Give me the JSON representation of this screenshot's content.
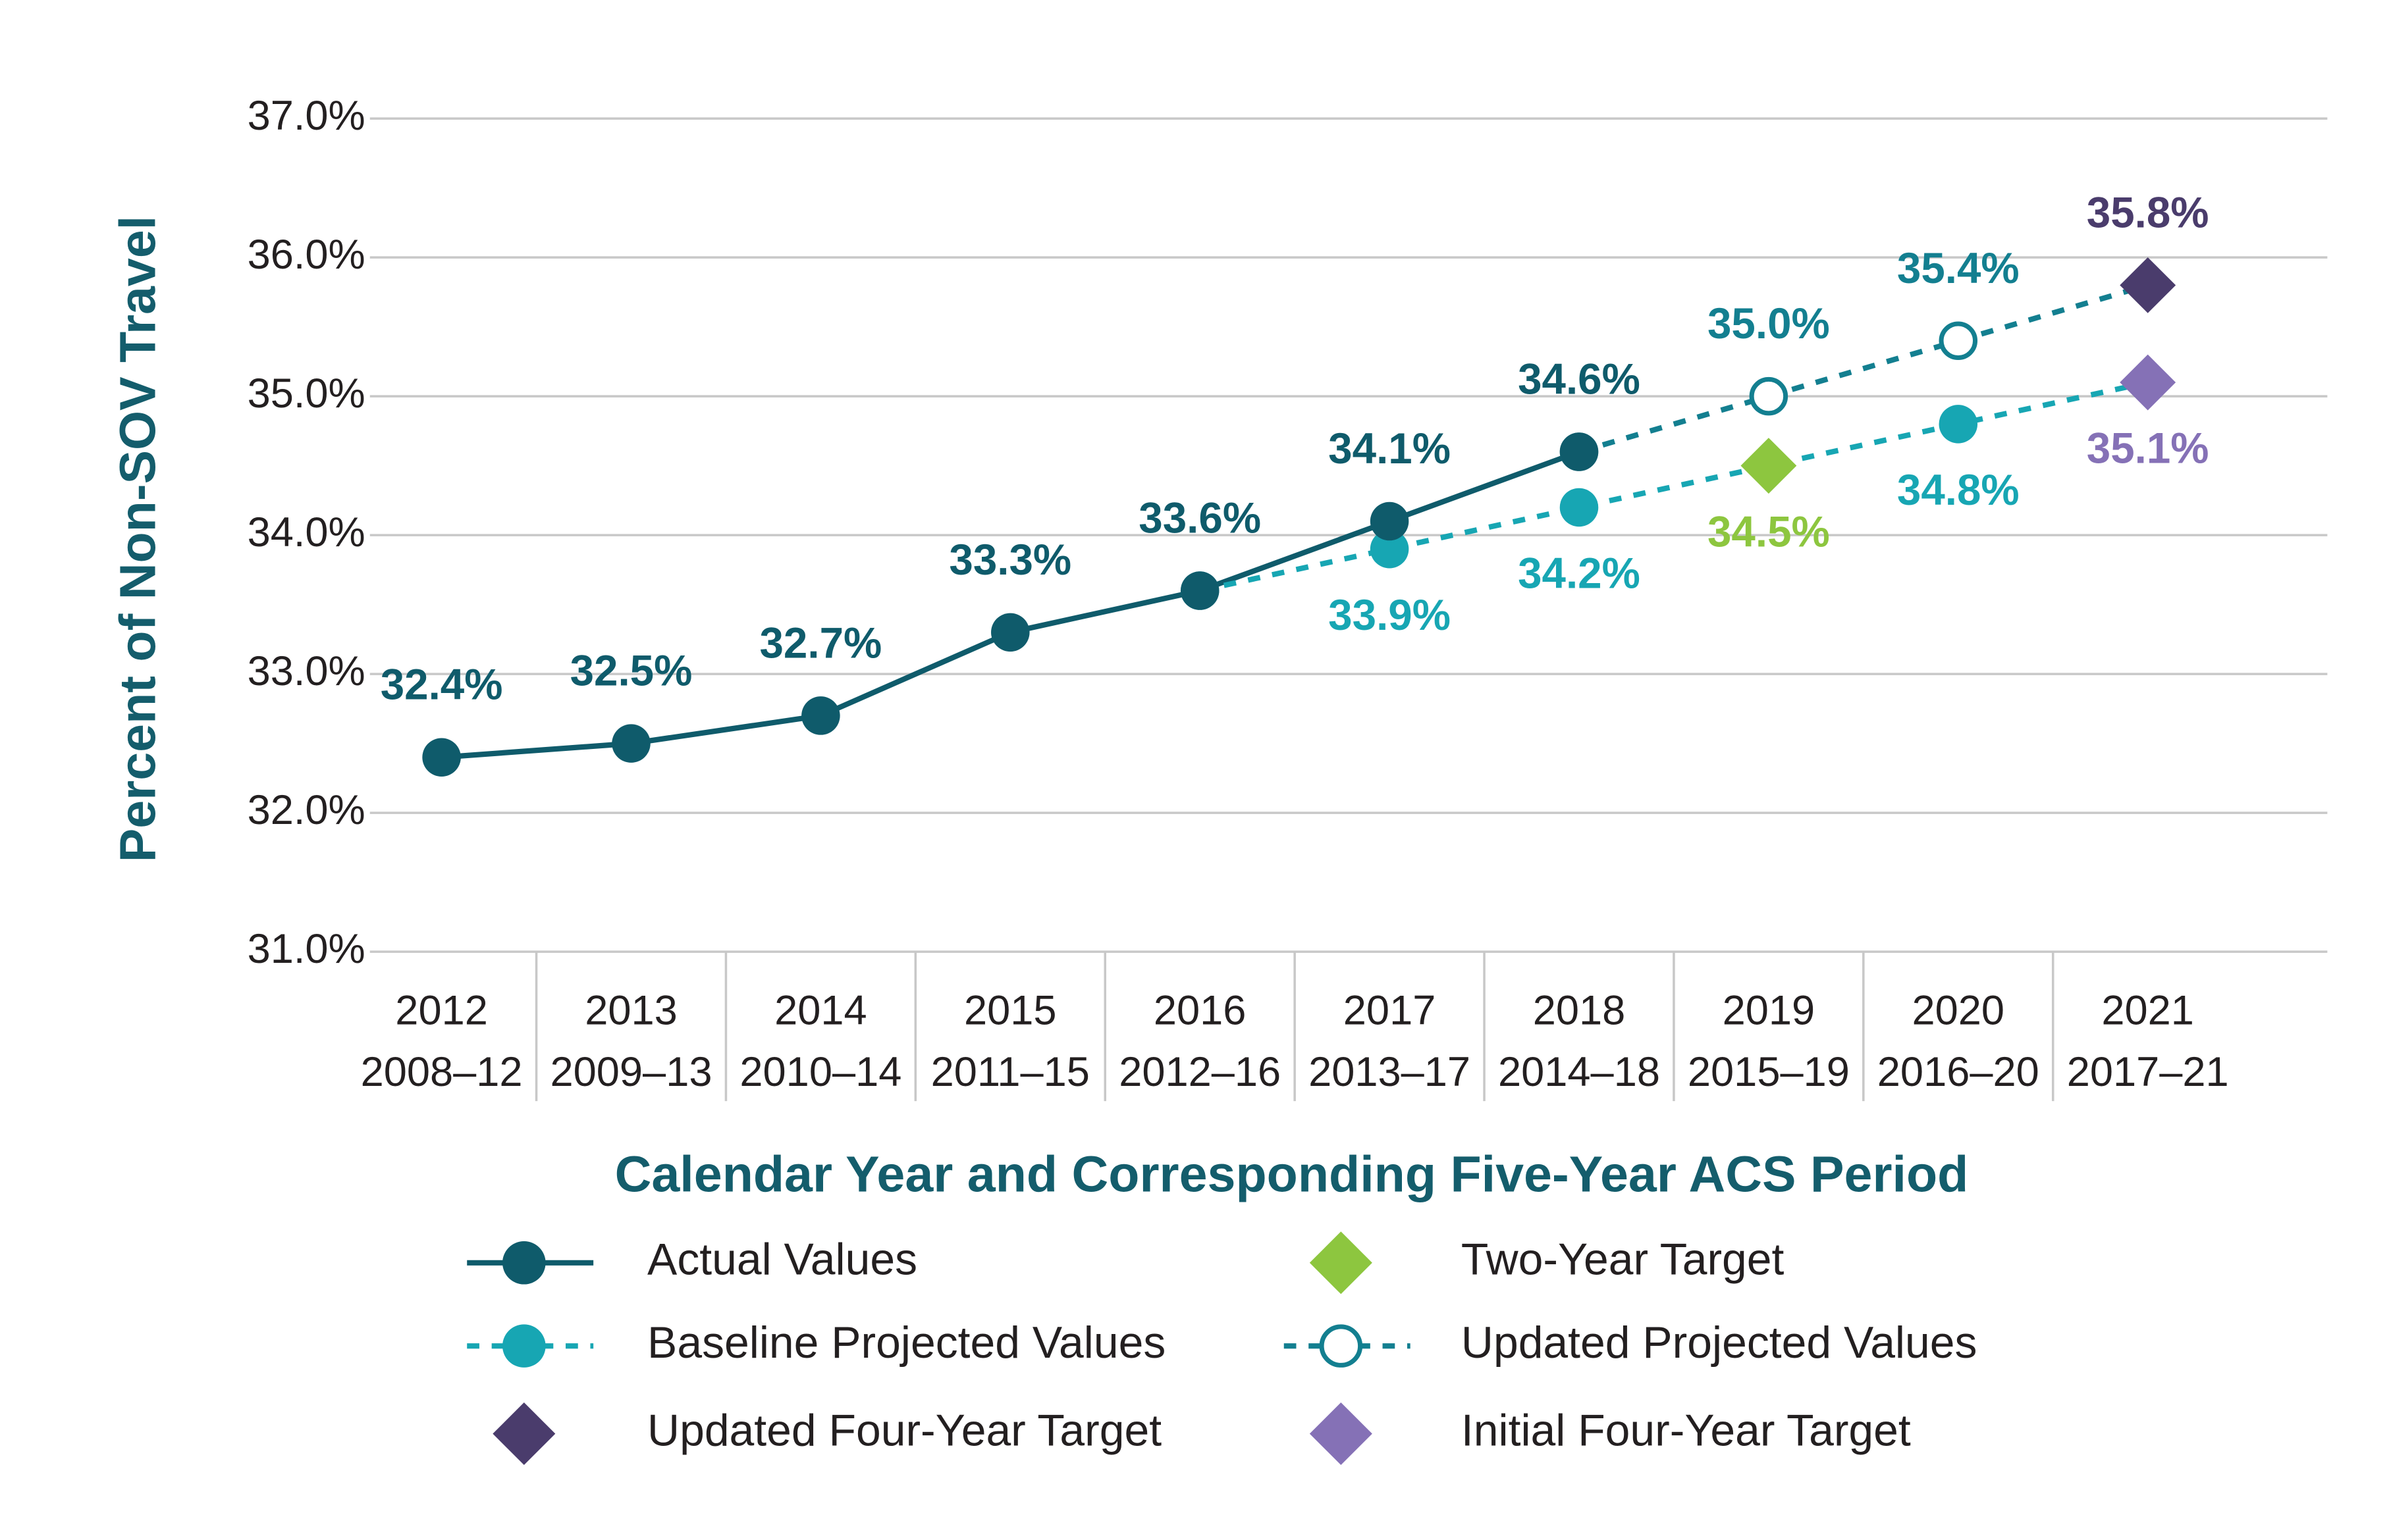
{
  "chart_data": {
    "type": "line",
    "y_axis_label": "Percent of Non-SOV Travel",
    "x_axis_label": "Calendar Year and Corresponding Five-Year ACS Period",
    "categories": [
      "2012",
      "2013",
      "2014",
      "2015",
      "2016",
      "2017",
      "2018",
      "2019",
      "2020",
      "2021"
    ],
    "periods": [
      "2008–12",
      "2009–13",
      "2010–14",
      "2011–15",
      "2012–16",
      "2013–17",
      "2014–18",
      "2015–19",
      "2016–20",
      "2017–21"
    ],
    "ylim": [
      31,
      37
    ],
    "yticks": [
      {
        "value": 31,
        "label": "31.0%"
      },
      {
        "value": 32,
        "label": "32.0%"
      },
      {
        "value": 33,
        "label": "33.0%"
      },
      {
        "value": 34,
        "label": "34.0%"
      },
      {
        "value": 35,
        "label": "35.0%"
      },
      {
        "value": 36,
        "label": "36.0%"
      },
      {
        "value": 37,
        "label": "37.0%"
      }
    ],
    "grid": true,
    "series": [
      {
        "name": "Actual Values",
        "color": "#0f5b6b",
        "line": "solid",
        "marker": "circle",
        "label_position": "above",
        "values": [
          32.4,
          32.5,
          32.7,
          33.3,
          33.6,
          34.1,
          34.6,
          null,
          null,
          null
        ],
        "value_labels": [
          "32.4%",
          "32.5%",
          "32.7%",
          "33.3%",
          "33.6%",
          "34.1%",
          "34.6%",
          null,
          null,
          null
        ]
      },
      {
        "name": "Two-Year Target",
        "color": "#8dc63f",
        "line": "none",
        "marker": "diamond",
        "label_position": "below",
        "values": [
          null,
          null,
          null,
          null,
          null,
          null,
          null,
          34.5,
          null,
          null
        ],
        "value_labels": [
          null,
          null,
          null,
          null,
          null,
          null,
          null,
          "34.5%",
          null,
          null
        ]
      },
      {
        "name": "Baseline Projected Values",
        "color": "#17a6b3",
        "line": "dashed",
        "marker": "circle",
        "label_position": "below",
        "values": [
          null,
          null,
          null,
          null,
          33.6,
          33.9,
          34.2,
          34.5,
          34.8,
          35.1
        ],
        "value_labels": [
          null,
          null,
          null,
          null,
          null,
          "33.9%",
          "34.2%",
          null,
          "34.8%",
          null
        ]
      },
      {
        "name": "Updated Projected Values",
        "color": "#137f90",
        "line": "dashed",
        "marker": "open-circle",
        "label_position": "above",
        "values": [
          null,
          null,
          null,
          null,
          null,
          null,
          34.6,
          35.0,
          35.4,
          35.8
        ],
        "value_labels": [
          null,
          null,
          null,
          null,
          null,
          null,
          null,
          "35.0%",
          "35.4%",
          null
        ]
      },
      {
        "name": "Updated Four-Year Target",
        "color": "#4a3c6c",
        "line": "none",
        "marker": "diamond",
        "label_position": "above",
        "values": [
          null,
          null,
          null,
          null,
          null,
          null,
          null,
          null,
          null,
          35.8
        ],
        "value_labels": [
          null,
          null,
          null,
          null,
          null,
          null,
          null,
          null,
          null,
          "35.8%"
        ]
      },
      {
        "name": "Initial Four-Year Target",
        "color": "#8571b6",
        "line": "none",
        "marker": "diamond",
        "label_position": "below",
        "values": [
          null,
          null,
          null,
          null,
          null,
          null,
          null,
          null,
          null,
          35.1
        ],
        "value_labels": [
          null,
          null,
          null,
          null,
          null,
          null,
          null,
          null,
          null,
          "35.1%"
        ]
      }
    ]
  }
}
